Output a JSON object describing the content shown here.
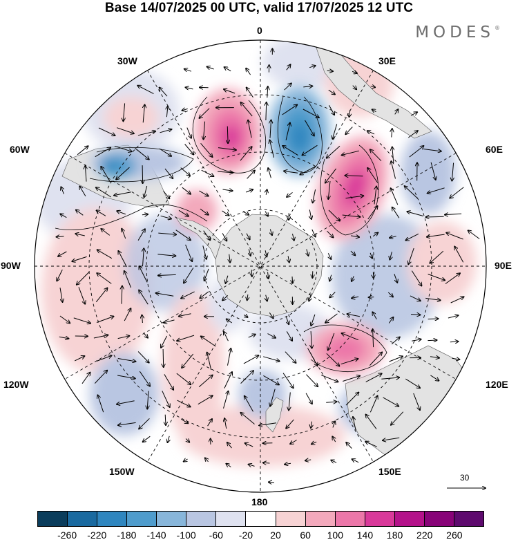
{
  "title": "Base 14/07/2025 00 UTC, valid 17/07/2025 12 UTC",
  "brand": "MODES",
  "brand_mark": "®",
  "longitude_labels": {
    "top": "0",
    "top_left": "30W",
    "top_right": "30E",
    "upper_left": "60W",
    "upper_right": "60E",
    "left": "90W",
    "right": "90E",
    "lower_left": "120W",
    "lower_right": "120E",
    "bottom_left": "150W",
    "bottom_right": "150E",
    "bottom": "180"
  },
  "reference_vector": {
    "label": "30"
  },
  "colorbar": {
    "ticks": [
      "-260",
      "-220",
      "-180",
      "-140",
      "-100",
      "-60",
      "-20",
      "20",
      "60",
      "100",
      "140",
      "180",
      "220",
      "260"
    ],
    "colors": [
      "#0b3d5c",
      "#1a6aa0",
      "#2f86bf",
      "#4f9ccc",
      "#88b6da",
      "#b9c6e2",
      "#dfe2f0",
      "#ffffff",
      "#f7d3d4",
      "#f3a9bc",
      "#ec77a9",
      "#d9399a",
      "#b4128a",
      "#880378",
      "#5e0a6e"
    ]
  },
  "map_colors": {
    "land": "#e3e3e3",
    "grid": "#000000"
  }
}
